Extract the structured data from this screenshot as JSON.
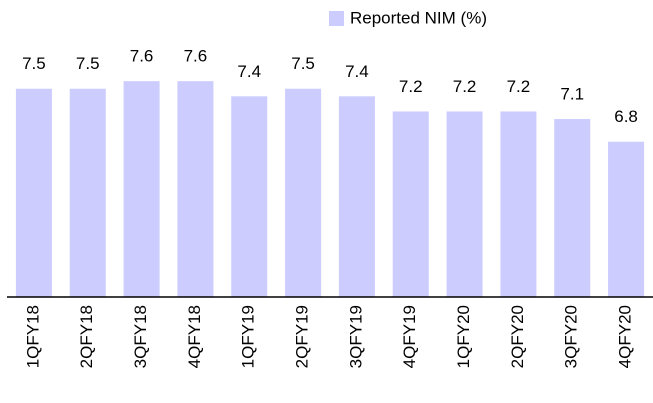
{
  "chart_data": {
    "type": "bar",
    "categories": [
      "1QFY18",
      "2QFY18",
      "3QFY18",
      "4QFY18",
      "1QFY19",
      "2QFY19",
      "3QFY19",
      "4QFY19",
      "1QFY20",
      "2QFY20",
      "3QFY20",
      "4QFY20"
    ],
    "series": [
      {
        "name": "Reported NIM (%)",
        "color": "#ccccff",
        "values": [
          7.5,
          7.5,
          7.6,
          7.6,
          7.4,
          7.5,
          7.4,
          7.2,
          7.2,
          7.2,
          7.1,
          6.8
        ]
      }
    ],
    "ylim": [
      4.75,
      8.5
    ],
    "legend": "top"
  }
}
